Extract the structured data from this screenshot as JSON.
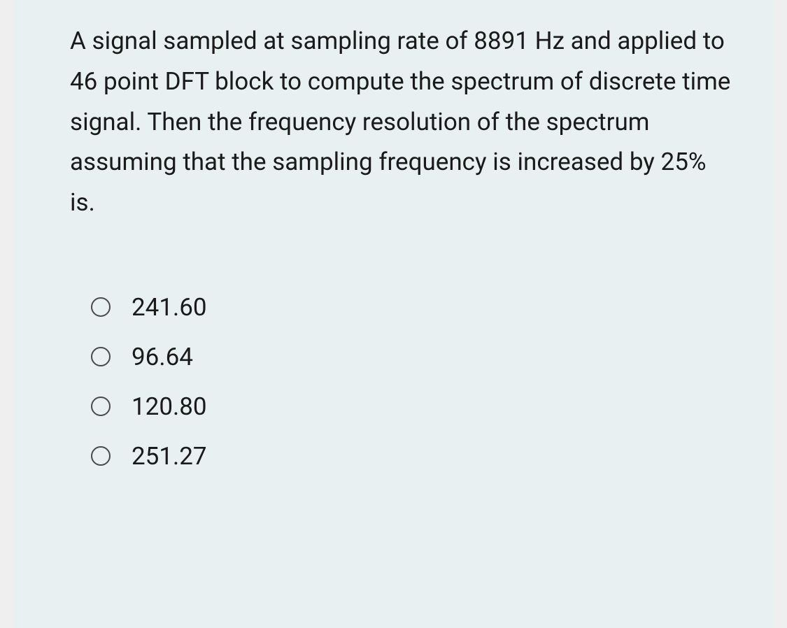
{
  "question": {
    "text": "A signal sampled at sampling rate of 8891 Hz  and applied to 46 point DFT block to compute the spectrum of discrete time signal. Then the  frequency resolution of the spectrum assuming that the sampling frequency is increased by 25% is.",
    "font_size": 35,
    "line_height": 1.65,
    "text_color": "#1a1a1a"
  },
  "options": [
    {
      "label": "241.60",
      "selected": false
    },
    {
      "label": "96.64",
      "selected": false
    },
    {
      "label": "120.80",
      "selected": false
    },
    {
      "label": "251.27",
      "selected": false
    }
  ],
  "styling": {
    "page_background": "#000000",
    "frame_background": "#efefef",
    "card_background": "#e9f0f2",
    "radio_border_color": "#4a4a4a",
    "radio_size": 28,
    "option_font_size": 35,
    "option_text_color": "#1a1a1a"
  }
}
